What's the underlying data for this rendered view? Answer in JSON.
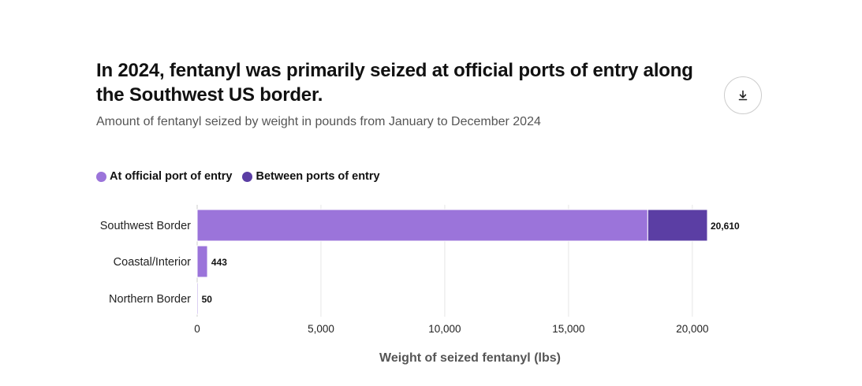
{
  "header": {
    "title": "In 2024, fentanyl was primarily seized at official ports of entry along the Southwest US border.",
    "subtitle": "Amount of fentanyl seized by weight in pounds from January to December 2024"
  },
  "toolbar": {
    "download_icon": "download-icon"
  },
  "colors": {
    "port": "#9b74da",
    "between": "#5b3ea4",
    "grid": "#e6e6e6"
  },
  "chart_data": {
    "type": "bar",
    "orientation": "horizontal",
    "stacked": true,
    "title": "In 2024, fentanyl was primarily seized at official ports of entry along the Southwest US border.",
    "subtitle": "Amount of fentanyl seized by weight in pounds from January to December 2024",
    "categories": [
      "Southwest Border",
      "Coastal/Interior",
      "Northern Border"
    ],
    "series": [
      {
        "name": "At official port of entry",
        "values": [
          18200,
          420,
          45
        ]
      },
      {
        "name": "Between ports of entry",
        "values": [
          2410,
          23,
          5
        ]
      }
    ],
    "totals": [
      20610,
      443,
      50
    ],
    "total_labels": [
      "20,610",
      "443",
      "50"
    ],
    "xlabel": "Weight of seized fentanyl (lbs)",
    "ylabel": "",
    "xlim": [
      0,
      20610
    ],
    "x_ticks": [
      0,
      5000,
      10000,
      15000,
      20000
    ],
    "x_tick_labels": [
      "0",
      "5,000",
      "10,000",
      "15,000",
      "20,000"
    ],
    "grid": "vertical",
    "legend_position": "top-left"
  }
}
